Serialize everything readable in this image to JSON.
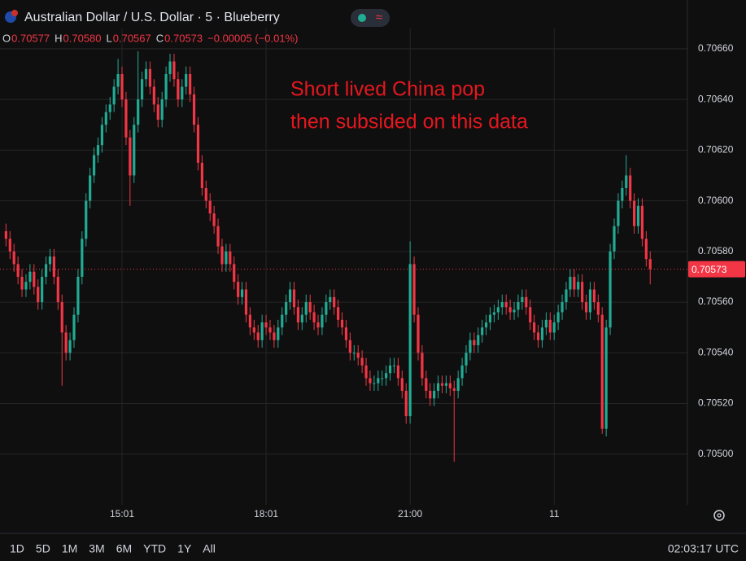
{
  "header": {
    "title": "Australian Dollar / U.S. Dollar · 5 · Blueberry",
    "ohlc": [
      {
        "label": "O",
        "value": "0.70577"
      },
      {
        "label": "H",
        "value": "0.70580"
      },
      {
        "label": "L",
        "value": "0.70567"
      },
      {
        "label": "C",
        "value": "0.70573"
      }
    ],
    "change": "−0.00005 (−0.01%)"
  },
  "toolbar": {
    "ranges": [
      "1D",
      "5D",
      "1M",
      "3M",
      "6M",
      "YTD",
      "1Y",
      "All"
    ],
    "clock": "02:03:17 UTC"
  },
  "chart_data": {
    "type": "candlestick",
    "annotation": [
      "Short lived China pop",
      "then subsided on this data"
    ],
    "up_color": "#22ab94",
    "down_color": "#f23645",
    "grid": true,
    "last_price": 0.70573,
    "xlim": [
      -1.5,
      170.3
    ],
    "xticks": [
      {
        "value": 29,
        "label": "15:01"
      },
      {
        "value": 65,
        "label": "18:01"
      },
      {
        "value": 101,
        "label": "21:00"
      },
      {
        "value": 137,
        "label": "11"
      }
    ],
    "ylim": [
      0.7048,
      0.70668
    ],
    "yticks": [
      {
        "value": 0.705,
        "label": "0.70500"
      },
      {
        "value": 0.7052,
        "label": "0.70520"
      },
      {
        "value": 0.7054,
        "label": "0.70540"
      },
      {
        "value": 0.7056,
        "label": "0.70560"
      },
      {
        "value": 0.7058,
        "label": "0.70580"
      },
      {
        "value": 0.706,
        "label": "0.70600"
      },
      {
        "value": 0.7062,
        "label": "0.70620"
      },
      {
        "value": 0.7064,
        "label": "0.70640"
      },
      {
        "value": 0.7066,
        "label": "0.70660"
      }
    ],
    "open": [
      0.70588,
      0.70585,
      0.7058,
      0.70575,
      0.7057,
      0.70565,
      0.70568,
      0.70572,
      0.70566,
      0.7056,
      0.7057,
      0.70575,
      0.70578,
      0.7057,
      0.7056,
      0.70548,
      0.7054,
      0.70545,
      0.70555,
      0.7057,
      0.70585,
      0.706,
      0.7061,
      0.70618,
      0.70622,
      0.7063,
      0.70635,
      0.70638,
      0.70645,
      0.7065,
      0.7064,
      0.70625,
      0.7061,
      0.7063,
      0.7064,
      0.70648,
      0.70652,
      0.70645,
      0.70638,
      0.70632,
      0.7064,
      0.7065,
      0.70655,
      0.70648,
      0.7064,
      0.70645,
      0.7065,
      0.70642,
      0.7063,
      0.70615,
      0.70605,
      0.706,
      0.70595,
      0.7059,
      0.70582,
      0.70575,
      0.7058,
      0.70575,
      0.70568,
      0.70562,
      0.70565,
      0.70555,
      0.7055,
      0.70548,
      0.70545,
      0.70552,
      0.7055,
      0.70548,
      0.70545,
      0.7055,
      0.70555,
      0.7056,
      0.70565,
      0.70558,
      0.70552,
      0.70555,
      0.7056,
      0.70556,
      0.70552,
      0.7055,
      0.70555,
      0.7056,
      0.70562,
      0.70558,
      0.70553,
      0.7055,
      0.70545,
      0.7054,
      0.7054,
      0.70538,
      0.70535,
      0.7053,
      0.70528,
      0.70528,
      0.7053,
      0.7053,
      0.70532,
      0.70535,
      0.70535,
      0.7053,
      0.70525,
      0.70515,
      0.70575,
      0.70555,
      0.7054,
      0.7053,
      0.70525,
      0.70522,
      0.70525,
      0.70528,
      0.70527,
      0.70528,
      0.70526,
      0.70525,
      0.7053,
      0.70535,
      0.7054,
      0.70545,
      0.70543,
      0.70547,
      0.7055,
      0.70552,
      0.70555,
      0.70556,
      0.70558,
      0.7056,
      0.70558,
      0.70556,
      0.70557,
      0.7056,
      0.70562,
      0.70558,
      0.70552,
      0.70548,
      0.70545,
      0.7055,
      0.70553,
      0.70548,
      0.70552,
      0.70556,
      0.7056,
      0.70565,
      0.7057,
      0.70565,
      0.70568,
      0.7056,
      0.70556,
      0.70565,
      0.7056,
      0.70555,
      0.7051,
      0.7055,
      0.7058,
      0.7059,
      0.706,
      0.70605,
      0.7061,
      0.706,
      0.7059,
      0.70598,
      0.70585,
      0.70577
    ],
    "high": [
      0.70591,
      0.70588,
      0.70583,
      0.70578,
      0.70573,
      0.70571,
      0.70575,
      0.70575,
      0.70569,
      0.70573,
      0.70578,
      0.70581,
      0.70581,
      0.70573,
      0.70563,
      0.70551,
      0.70548,
      0.70558,
      0.70573,
      0.70588,
      0.70603,
      0.70613,
      0.70621,
      0.70625,
      0.70633,
      0.70638,
      0.70641,
      0.70648,
      0.70656,
      0.70653,
      0.70643,
      0.70628,
      0.70633,
      0.70659,
      0.70651,
      0.70655,
      0.70655,
      0.70648,
      0.70641,
      0.70643,
      0.70653,
      0.70658,
      0.70658,
      0.70651,
      0.70648,
      0.70653,
      0.70653,
      0.70645,
      0.70633,
      0.70618,
      0.70608,
      0.70603,
      0.70598,
      0.70593,
      0.70585,
      0.70583,
      0.70583,
      0.70578,
      0.70571,
      0.70568,
      0.70568,
      0.70558,
      0.70553,
      0.70551,
      0.70555,
      0.70555,
      0.70553,
      0.70551,
      0.70553,
      0.70558,
      0.70563,
      0.70568,
      0.70568,
      0.70561,
      0.70558,
      0.70563,
      0.70563,
      0.70559,
      0.70555,
      0.70558,
      0.70563,
      0.70565,
      0.70565,
      0.70561,
      0.70556,
      0.70553,
      0.70548,
      0.70543,
      0.70543,
      0.70541,
      0.70538,
      0.70533,
      0.70531,
      0.70533,
      0.70533,
      0.70535,
      0.70538,
      0.70538,
      0.70538,
      0.70533,
      0.70528,
      0.70584,
      0.70578,
      0.70558,
      0.70543,
      0.70533,
      0.70528,
      0.70528,
      0.70531,
      0.70531,
      0.70531,
      0.70531,
      0.70529,
      0.70533,
      0.70538,
      0.70543,
      0.70548,
      0.70548,
      0.7055,
      0.70553,
      0.70555,
      0.70558,
      0.70559,
      0.70561,
      0.70563,
      0.70563,
      0.70561,
      0.7056,
      0.70563,
      0.70565,
      0.70565,
      0.70561,
      0.70555,
      0.70551,
      0.70553,
      0.70556,
      0.70556,
      0.70555,
      0.70559,
      0.70563,
      0.70568,
      0.70573,
      0.70573,
      0.70571,
      0.70571,
      0.70563,
      0.70568,
      0.70568,
      0.70563,
      0.70558,
      0.70553,
      0.70583,
      0.70593,
      0.70603,
      0.70608,
      0.70618,
      0.70613,
      0.70603,
      0.70601,
      0.70601,
      0.70588,
      0.7058
    ],
    "low": [
      0.70582,
      0.70577,
      0.70572,
      0.70567,
      0.70562,
      0.70562,
      0.70565,
      0.70563,
      0.70557,
      0.70557,
      0.70567,
      0.70572,
      0.70567,
      0.70557,
      0.70527,
      0.70537,
      0.70537,
      0.70542,
      0.70552,
      0.70567,
      0.70582,
      0.70597,
      0.70607,
      0.70615,
      0.70619,
      0.70627,
      0.70632,
      0.70635,
      0.70642,
      0.70637,
      0.70622,
      0.70598,
      0.70607,
      0.70627,
      0.70637,
      0.70645,
      0.70642,
      0.70635,
      0.70629,
      0.70629,
      0.70637,
      0.70647,
      0.70645,
      0.70637,
      0.70637,
      0.70642,
      0.70639,
      0.70627,
      0.70612,
      0.70602,
      0.70597,
      0.70592,
      0.70587,
      0.70579,
      0.70572,
      0.70572,
      0.70572,
      0.70565,
      0.70559,
      0.70559,
      0.70552,
      0.70547,
      0.70545,
      0.70542,
      0.70542,
      0.70547,
      0.70545,
      0.70542,
      0.70542,
      0.70547,
      0.70552,
      0.70557,
      0.70555,
      0.70549,
      0.70549,
      0.70552,
      0.70553,
      0.70549,
      0.70547,
      0.70547,
      0.70552,
      0.70557,
      0.70555,
      0.7055,
      0.70547,
      0.70542,
      0.70537,
      0.70537,
      0.70535,
      0.70532,
      0.70527,
      0.70525,
      0.70525,
      0.70525,
      0.70527,
      0.70527,
      0.70529,
      0.70532,
      0.70527,
      0.70522,
      0.70512,
      0.70512,
      0.70552,
      0.70537,
      0.70527,
      0.70522,
      0.70519,
      0.70519,
      0.70522,
      0.70524,
      0.70524,
      0.70523,
      0.70497,
      0.70522,
      0.70527,
      0.70532,
      0.70537,
      0.7054,
      0.7054,
      0.70544,
      0.70547,
      0.70549,
      0.70552,
      0.70553,
      0.70555,
      0.70555,
      0.70553,
      0.70553,
      0.70554,
      0.70557,
      0.70555,
      0.70549,
      0.70545,
      0.70542,
      0.70542,
      0.70547,
      0.70545,
      0.70545,
      0.70549,
      0.70553,
      0.70557,
      0.70562,
      0.70562,
      0.70562,
      0.70557,
      0.70553,
      0.70553,
      0.70557,
      0.70552,
      0.70508,
      0.70507,
      0.70547,
      0.70577,
      0.70587,
      0.70597,
      0.70602,
      0.70597,
      0.70587,
      0.70587,
      0.70582,
      0.70574,
      0.70567
    ],
    "close": [
      0.70585,
      0.7058,
      0.70575,
      0.7057,
      0.70565,
      0.70568,
      0.70572,
      0.70566,
      0.7056,
      0.7057,
      0.70575,
      0.70578,
      0.7057,
      0.7056,
      0.70548,
      0.7054,
      0.70545,
      0.70555,
      0.7057,
      0.70585,
      0.706,
      0.7061,
      0.70618,
      0.70622,
      0.7063,
      0.70635,
      0.70638,
      0.70645,
      0.7065,
      0.7064,
      0.70625,
      0.7061,
      0.7063,
      0.7064,
      0.70648,
      0.70652,
      0.70645,
      0.70638,
      0.70632,
      0.7064,
      0.7065,
      0.70655,
      0.70648,
      0.7064,
      0.70645,
      0.7065,
      0.70642,
      0.7063,
      0.70615,
      0.70605,
      0.706,
      0.70595,
      0.7059,
      0.70582,
      0.70575,
      0.7058,
      0.70575,
      0.70568,
      0.70562,
      0.70565,
      0.70555,
      0.7055,
      0.70548,
      0.70545,
      0.70552,
      0.7055,
      0.70548,
      0.70545,
      0.7055,
      0.70555,
      0.7056,
      0.70565,
      0.70558,
      0.70552,
      0.70555,
      0.7056,
      0.70556,
      0.70552,
      0.7055,
      0.70555,
      0.7056,
      0.70562,
      0.70558,
      0.70553,
      0.7055,
      0.70545,
      0.7054,
      0.7054,
      0.70538,
      0.70535,
      0.7053,
      0.70528,
      0.70528,
      0.7053,
      0.7053,
      0.70532,
      0.70535,
      0.70535,
      0.7053,
      0.70525,
      0.70515,
      0.70575,
      0.70555,
      0.7054,
      0.7053,
      0.70525,
      0.70522,
      0.70525,
      0.70528,
      0.70527,
      0.70528,
      0.70526,
      0.70525,
      0.7053,
      0.70535,
      0.7054,
      0.70545,
      0.70543,
      0.70547,
      0.7055,
      0.70552,
      0.70555,
      0.70556,
      0.70558,
      0.7056,
      0.70558,
      0.70556,
      0.70557,
      0.7056,
      0.70562,
      0.70558,
      0.70552,
      0.70548,
      0.70545,
      0.7055,
      0.70553,
      0.70548,
      0.70552,
      0.70556,
      0.7056,
      0.70565,
      0.7057,
      0.70565,
      0.70568,
      0.7056,
      0.70556,
      0.70565,
      0.7056,
      0.70555,
      0.7051,
      0.7055,
      0.7058,
      0.7059,
      0.706,
      0.70605,
      0.7061,
      0.706,
      0.7059,
      0.70598,
      0.70585,
      0.70577,
      0.70573
    ]
  }
}
